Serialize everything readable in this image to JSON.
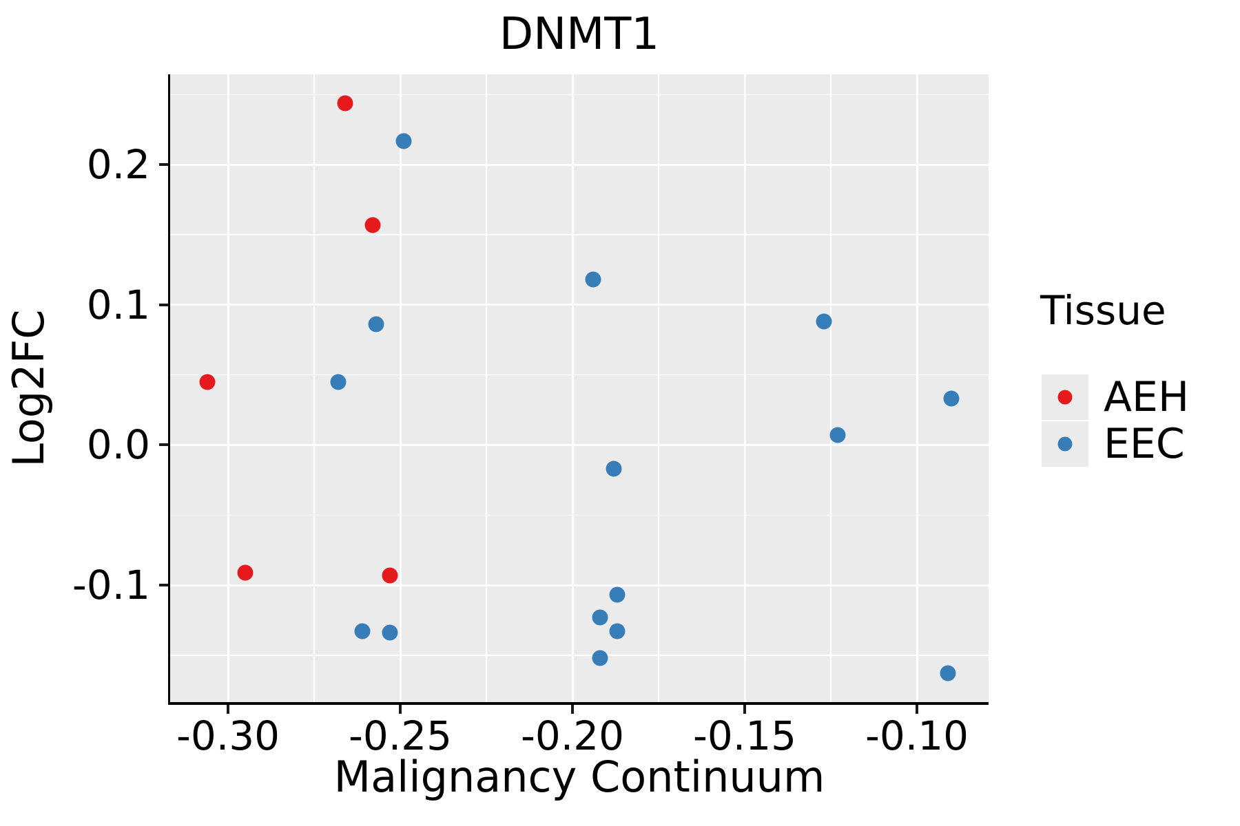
{
  "title": "DNMT1",
  "x_axis": {
    "label": "Malignancy Continuum",
    "tick_labels": [
      "-0.30",
      "-0.25",
      "-0.20",
      "-0.15",
      "-0.10"
    ],
    "tick_values": [
      -0.3,
      -0.25,
      -0.2,
      -0.15,
      -0.1
    ],
    "minor_tick_values": [
      -0.275,
      -0.225,
      -0.175,
      -0.125
    ],
    "range": [
      -0.3168,
      -0.0792
    ]
  },
  "y_axis": {
    "label": "Log2FC",
    "tick_labels": [
      "0.2",
      "0.1",
      "0.0",
      "-0.1"
    ],
    "tick_values": [
      0.2,
      0.1,
      0.0,
      -0.1
    ],
    "minor_tick_values": [
      0.25,
      0.15,
      0.05,
      -0.05,
      -0.15
    ],
    "range": [
      -0.1834,
      0.2644
    ]
  },
  "legend": {
    "title": "Tissue",
    "entries": [
      {
        "label": "AEH",
        "color": "#E41A1C"
      },
      {
        "label": "EEC",
        "color": "#377EB8"
      }
    ]
  },
  "style": {
    "panel_bg": "#EBEBEB",
    "grid_color": "#FFFFFF",
    "axis_color": "#000000",
    "aeh_color": "#E41A1C",
    "eec_color": "#377EB8"
  },
  "chart_data": {
    "type": "scatter",
    "title": "DNMT1",
    "xlabel": "Malignancy Continuum",
    "ylabel": "Log2FC",
    "xlim": [
      -0.3168,
      -0.0792
    ],
    "ylim": [
      -0.1834,
      0.2644
    ],
    "grid": "on",
    "legend_position": "right",
    "series": [
      {
        "name": "AEH",
        "color": "#E41A1C",
        "points": [
          [
            -0.266,
            0.244
          ],
          [
            -0.258,
            0.157
          ],
          [
            -0.306,
            0.045
          ],
          [
            -0.295,
            -0.091
          ],
          [
            -0.253,
            -0.093
          ]
        ]
      },
      {
        "name": "EEC",
        "color": "#377EB8",
        "points": [
          [
            -0.249,
            0.217
          ],
          [
            -0.257,
            0.086
          ],
          [
            -0.268,
            0.045
          ],
          [
            -0.194,
            0.118
          ],
          [
            -0.188,
            -0.017
          ],
          [
            -0.187,
            -0.107
          ],
          [
            -0.192,
            -0.123
          ],
          [
            -0.187,
            -0.133
          ],
          [
            -0.192,
            -0.152
          ],
          [
            -0.261,
            -0.133
          ],
          [
            -0.253,
            -0.134
          ],
          [
            -0.127,
            0.088
          ],
          [
            -0.123,
            0.007
          ],
          [
            -0.09,
            0.033
          ],
          [
            -0.091,
            -0.163
          ]
        ]
      }
    ]
  }
}
